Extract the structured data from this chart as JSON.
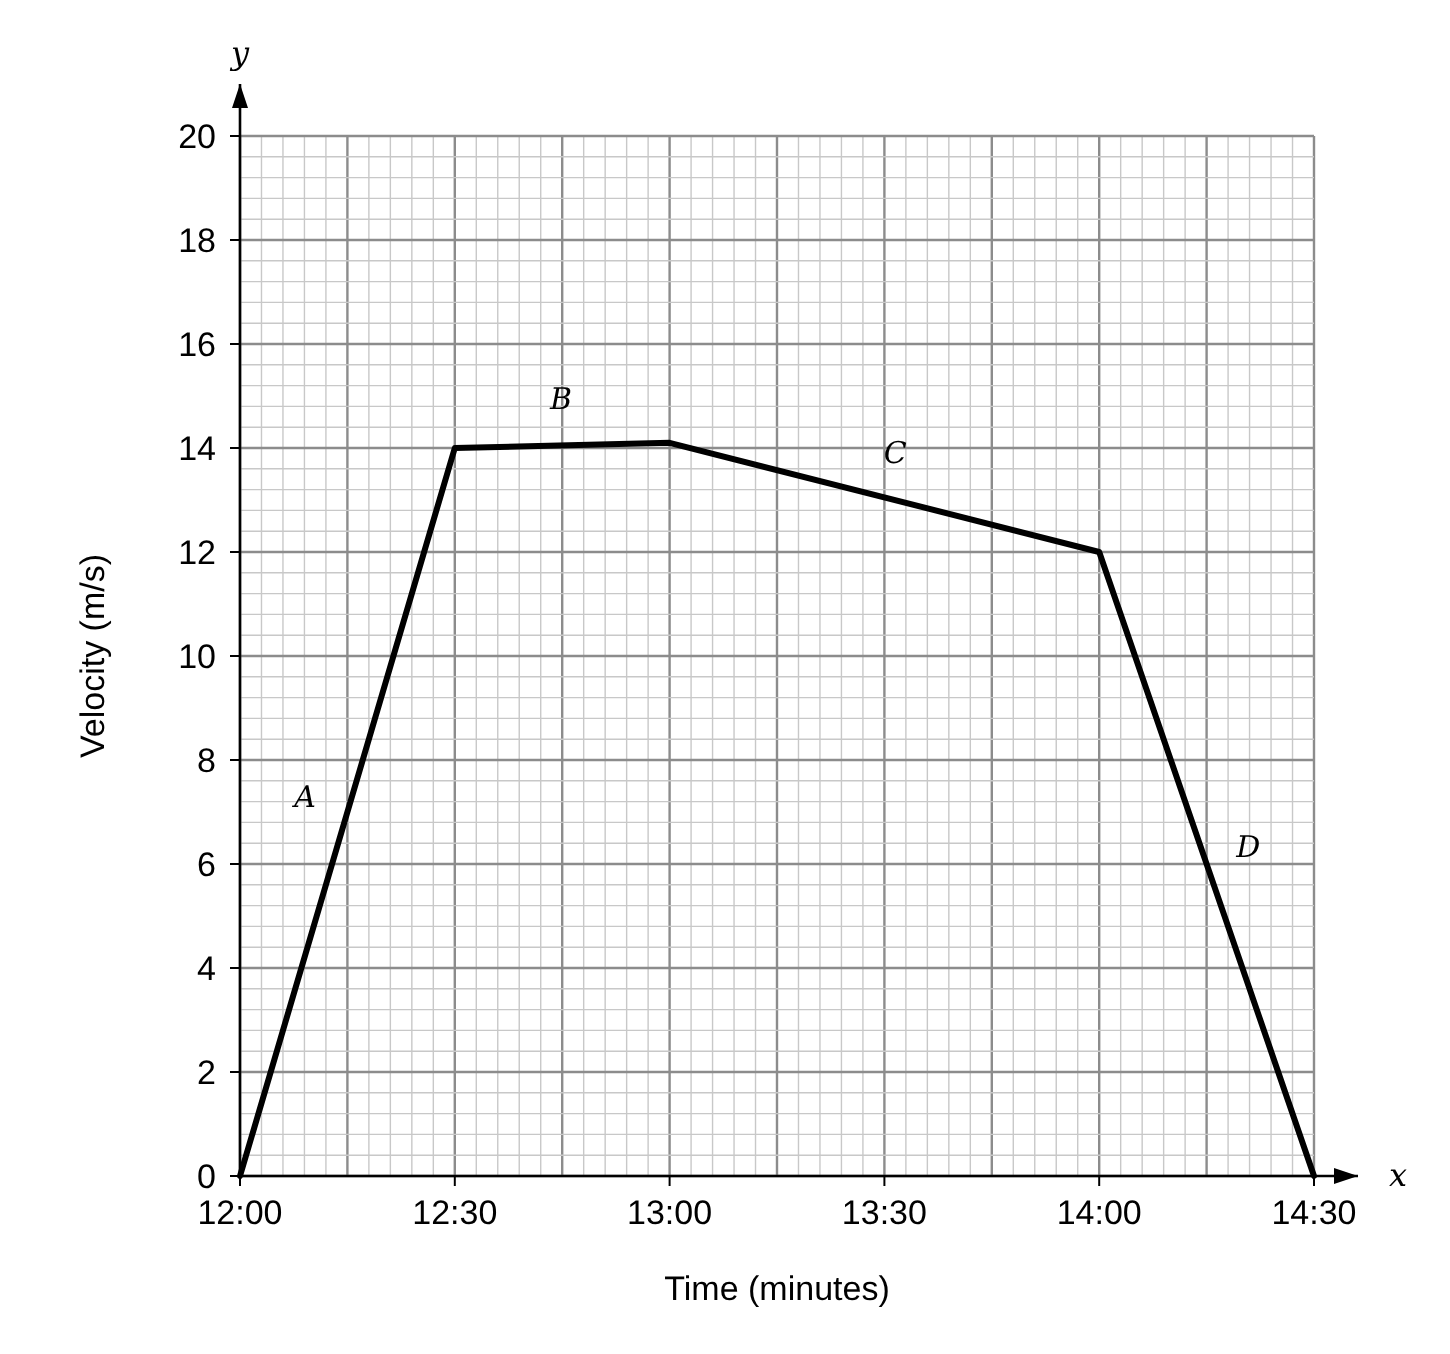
{
  "chart_data": {
    "type": "line",
    "xlabel": "Time (minutes)",
    "ylabel": "Velocity (m/s)",
    "x": [
      12,
      12.5,
      13,
      14,
      14.5
    ],
    "series": [
      {
        "color": "#000000",
        "values": [
          0,
          14,
          14.1,
          12,
          0
        ]
      }
    ],
    "xlim": [
      12,
      14.5
    ],
    "xticks": [
      {
        "value": 12,
        "label": "12:00"
      },
      {
        "value": 12.5,
        "label": "12:30"
      },
      {
        "value": 13,
        "label": "13:00"
      },
      {
        "value": 13.5,
        "label": "13:30"
      },
      {
        "value": 14,
        "label": "14:00"
      },
      {
        "value": 14.5,
        "label": "14:30"
      }
    ],
    "ylim": [
      0,
      20
    ],
    "yticks": [
      0,
      2,
      4,
      6,
      8,
      10,
      12,
      14,
      16,
      18,
      20
    ],
    "grid": true,
    "marker": "none",
    "line_style": "solid",
    "annotations": [
      "A",
      "B",
      "C",
      "D",
      "x",
      "y"
    ]
  }
}
